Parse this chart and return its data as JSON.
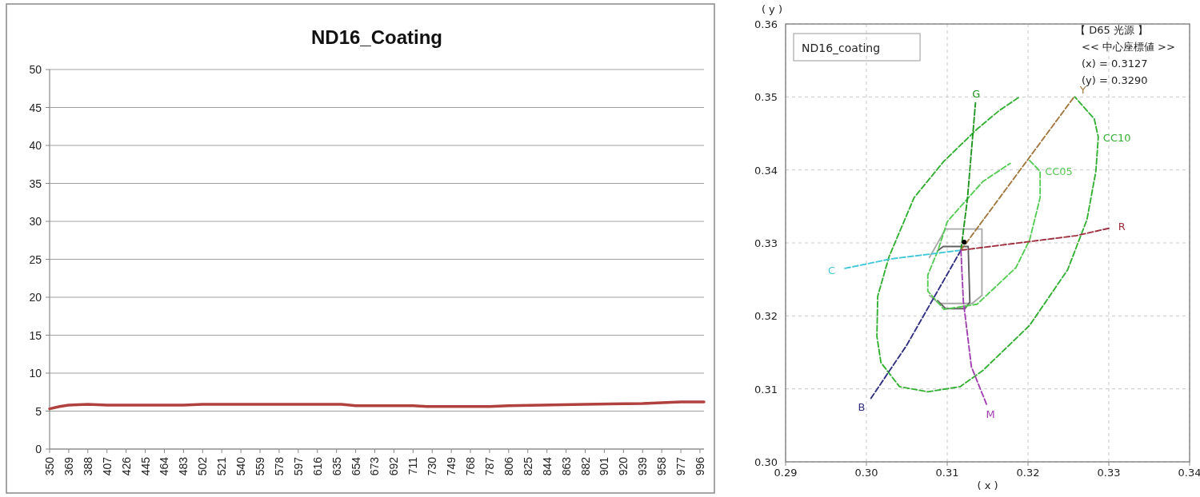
{
  "chart_data": [
    {
      "type": "line",
      "title": "ND16_Coating",
      "xlim": [
        350,
        1000
      ],
      "ylim": [
        0,
        50
      ],
      "grid": "y",
      "xticks": [
        350,
        369,
        388,
        407,
        426,
        445,
        464,
        483,
        502,
        521,
        540,
        559,
        578,
        597,
        616,
        635,
        654,
        673,
        692,
        711,
        730,
        749,
        768,
        787,
        806,
        825,
        844,
        863,
        882,
        901,
        920,
        939,
        958,
        977,
        996
      ],
      "yticks": [
        0,
        5,
        10,
        15,
        20,
        25,
        30,
        35,
        40,
        45,
        50
      ],
      "series": [
        {
          "color": "#b0413e",
          "x": [
            350,
            360,
            369,
            388,
            407,
            483,
            502,
            578,
            640,
            654,
            711,
            725,
            787,
            806,
            882,
            939,
            977,
            1000
          ],
          "values": [
            5.3,
            5.6,
            5.8,
            5.9,
            5.8,
            5.8,
            5.9,
            5.9,
            5.9,
            5.7,
            5.7,
            5.6,
            5.6,
            5.7,
            5.9,
            6.0,
            6.2,
            6.2
          ]
        }
      ]
    },
    {
      "type": "line",
      "xlabel": "( x )",
      "ylabel": "( y )",
      "xlim": [
        0.29,
        0.34
      ],
      "ylim": [
        0.3,
        0.36
      ],
      "grid": true,
      "line_style": "dashed",
      "xticks": [
        0.29,
        {
          "value": 0.3,
          "label": "0.30"
        },
        0.31,
        0.32,
        0.33,
        0.34
      ],
      "yticks": [
        {
          "value": 0.3,
          "label": "0.30"
        },
        0.31,
        0.32,
        0.33,
        0.34,
        0.35,
        0.36
      ],
      "annotations": [
        "ND16_coating",
        "【 D65 光源 】",
        "<< 中心座標値 >>",
        "(x) = 0.3127",
        "(y) = 0.3290"
      ],
      "series": [
        {
          "color": "#a8a8a8",
          "line_style": "solid",
          "x": [
            0.3078,
            0.3098,
            0.3143,
            0.3143,
            0.3131,
            0.309,
            0.3078
          ],
          "values": [
            0.328,
            0.3319,
            0.3319,
            0.3228,
            0.3217,
            0.3217,
            0.3228
          ]
        },
        {
          "color": "#606060",
          "line_style": "solid",
          "x": [
            0.3088,
            0.3095,
            0.3126,
            0.3128,
            0.3122,
            0.3098,
            0.3088
          ],
          "values": [
            0.3289,
            0.3295,
            0.3295,
            0.3219,
            0.321,
            0.321,
            0.3221
          ]
        },
        {
          "name": "CC05",
          "color": "#55cc55",
          "x": [
            0.3202,
            0.3215,
            0.3215,
            0.3202,
            0.3185,
            0.3137,
            0.3096,
            0.3076,
            0.3076,
            0.3089,
            0.31,
            0.3144,
            0.3178
          ],
          "values": [
            0.3413,
            0.3398,
            0.3362,
            0.3304,
            0.3266,
            0.3216,
            0.3209,
            0.3234,
            0.3256,
            0.3291,
            0.3329,
            0.3384,
            0.3409
          ]
        },
        {
          "name": "CC10",
          "color": "#33b033",
          "x": [
            0.3188,
            0.3164,
            0.3137,
            0.3096,
            0.3059,
            0.3028,
            0.3014,
            0.3013,
            0.3018,
            0.3041,
            0.3076,
            0.3116,
            0.3144,
            0.3202,
            0.3249,
            0.3273,
            0.3284,
            0.3287,
            0.3282,
            0.3258
          ],
          "values": [
            0.3499,
            0.3481,
            0.3456,
            0.3412,
            0.3362,
            0.3281,
            0.3227,
            0.3172,
            0.3136,
            0.3103,
            0.3096,
            0.3103,
            0.3125,
            0.3187,
            0.3263,
            0.3332,
            0.3398,
            0.3445,
            0.347,
            0.35
          ]
        },
        {
          "name": "G",
          "color": "#1f961f",
          "x": [
            0.3117,
            0.3125,
            0.3135
          ],
          "values": [
            0.329,
            0.336,
            0.3492
          ]
        },
        {
          "name": "Y",
          "color": "#a07840",
          "x": [
            0.3117,
            0.3257
          ],
          "values": [
            0.329,
            0.35
          ]
        },
        {
          "name": "R",
          "color": "#a03040",
          "x": [
            0.3117,
            0.326,
            0.33
          ],
          "values": [
            0.329,
            0.331,
            0.332
          ]
        },
        {
          "name": "C",
          "color": "#40c8d8",
          "x": [
            0.3117,
            0.303,
            0.2973
          ],
          "values": [
            0.329,
            0.3278,
            0.3265
          ]
        },
        {
          "name": "B",
          "color": "#303080",
          "x": [
            0.3117,
            0.305,
            0.3005
          ],
          "values": [
            0.329,
            0.316,
            0.3086
          ]
        },
        {
          "name": "M",
          "color": "#a040b0",
          "x": [
            0.3117,
            0.312,
            0.313,
            0.3149
          ],
          "values": [
            0.329,
            0.322,
            0.313,
            0.3078
          ]
        },
        {
          "type": "scatter",
          "marker": "circle",
          "color": "#000000",
          "x": [
            0.3121
          ],
          "values": [
            0.3301
          ]
        }
      ]
    }
  ]
}
